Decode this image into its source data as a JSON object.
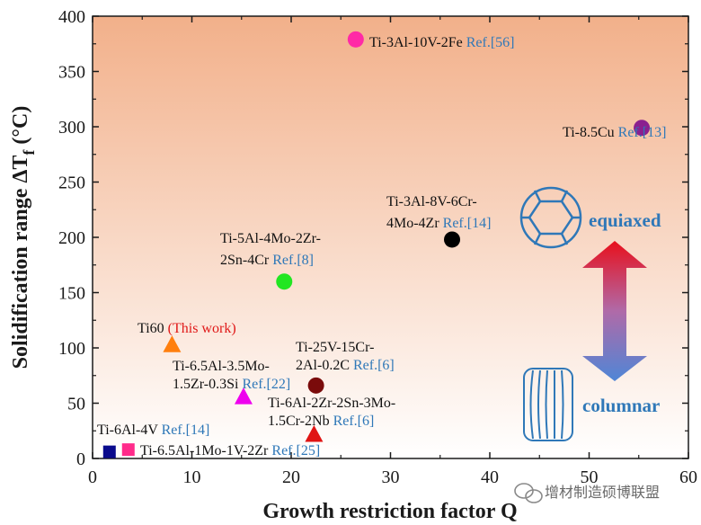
{
  "chart_data": {
    "type": "scatter",
    "xlabel": "Growth restriction factor Q",
    "ylabel": "Solidification  range ΔT",
    "ylabel_sub": "f",
    "ylabel_unit": "(°C)",
    "xlim": [
      0,
      60
    ],
    "ylim": [
      0,
      400
    ],
    "x_ticks": [
      "0",
      "10",
      "20",
      "30",
      "40",
      "50",
      "60"
    ],
    "y_ticks": [
      "0",
      "50",
      "100",
      "150",
      "200",
      "250",
      "300",
      "350",
      "400"
    ],
    "grid": false,
    "points": [
      {
        "alloy": "Ti-3Al-10V-2Fe",
        "ref": "Ref.[56]",
        "x": 26.5,
        "y": 379,
        "marker": "circle",
        "color": "#ff2aa6"
      },
      {
        "alloy": "Ti-8.5Cu",
        "ref": "Ref.[13]",
        "x": 55.3,
        "y": 299,
        "marker": "circle",
        "color": "#8b1f8f"
      },
      {
        "alloy": "Ti-3Al-8V-6Cr-4Mo-4Zr",
        "ref": "Ref.[14]",
        "x": 36.2,
        "y": 198,
        "marker": "circle",
        "color": "#000000"
      },
      {
        "alloy": "Ti-5Al-4Mo-2Zr-2Sn-4Cr",
        "ref": "Ref.[8]",
        "x": 19.3,
        "y": 160,
        "marker": "circle",
        "color": "#22e622"
      },
      {
        "alloy": "Ti60",
        "ref": "(This work)",
        "x": 8.0,
        "y": 103,
        "marker": "triangle",
        "color": "#ff7f0e"
      },
      {
        "alloy": "Ti-25V-15Cr-2Al-0.2C",
        "ref": "Ref.[6]",
        "x": 22.5,
        "y": 66,
        "marker": "circle",
        "color": "#7a0b0b"
      },
      {
        "alloy": "Ti-6.5Al-3.5Mo-1.5Zr-0.3Si",
        "ref": "Ref.[22]",
        "x": 15.2,
        "y": 56,
        "marker": "triangle",
        "color": "#ee00ee"
      },
      {
        "alloy": "Ti-6Al-2Zr-2Sn-3Mo-1.5Cr-2Nb",
        "ref": "Ref.[6]",
        "x": 22.3,
        "y": 22,
        "marker": "triangle",
        "color": "#e01414"
      },
      {
        "alloy": "Ti-6Al-4V",
        "ref": "Ref.[14]",
        "x": 1.7,
        "y": 6,
        "marker": "square",
        "color": "#0a0a8c"
      },
      {
        "alloy": "Ti-6.5Al-1Mo-1V-2Zr",
        "ref": "Ref.[25]",
        "x": 3.6,
        "y": 8,
        "marker": "square",
        "color": "#ff2a8a"
      }
    ],
    "labels": {
      "p0": [
        "Ti-3Al-10V-2Fe "
      ],
      "p1": [
        "Ti-8.5Cu "
      ],
      "p2": [
        "Ti-3Al-8V-6Cr-",
        "4Mo-4Zr "
      ],
      "p3": [
        "Ti-5Al-4Mo-2Zr-",
        "2Sn-4Cr "
      ],
      "p4": [
        "Ti60 "
      ],
      "p5": [
        "Ti-25V-15Cr-",
        "2Al-0.2C "
      ],
      "p6": [
        "Ti-6.5Al-3.5Mo-",
        "1.5Zr-0.3Si "
      ],
      "p7": [
        "Ti-6Al-2Zr-2Sn-3Mo-",
        "1.5Cr-2Nb "
      ],
      "p8": [
        "Ti-6Al-4V "
      ],
      "p9": [
        "Ti-6.5Al-1Mo-1V-2Zr "
      ]
    },
    "annotations": {
      "equiaxed": "equiaxed",
      "columnar": "columnar"
    },
    "background": {
      "top": "#f2b08a",
      "bottom": "#ffffff"
    }
  },
  "watermark": "增材制造硕博联盟"
}
